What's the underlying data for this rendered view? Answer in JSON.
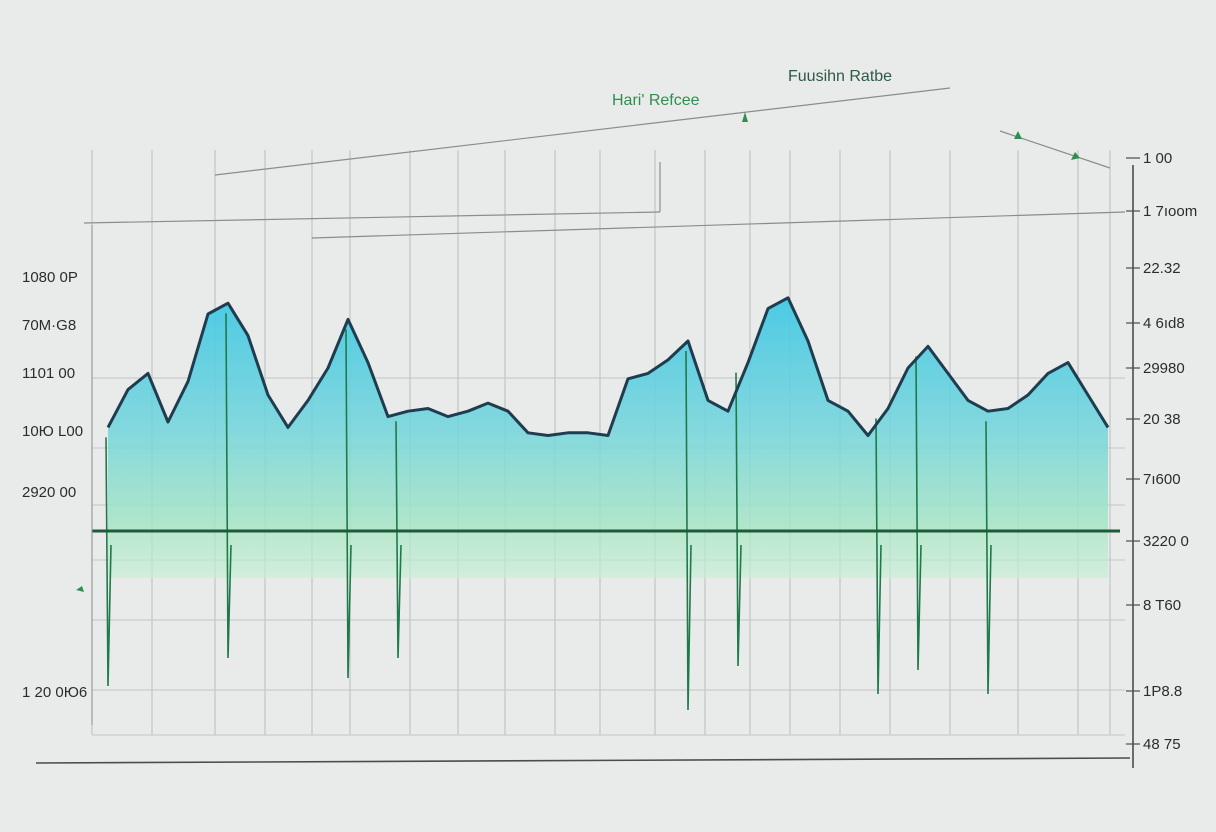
{
  "colors": {
    "background": "#e9ebea",
    "grid": "#b9bcbb",
    "axis": "#4a4d4c",
    "outline": "#1f3d4e",
    "fill_top": "#43c8e4",
    "fill_bottom": "#a8e6c4",
    "baseline": "#1f5a3c",
    "spike": "#1f7a4a",
    "annotation": "#2f8f4e"
  },
  "chart_data": {
    "type": "area",
    "title": "",
    "xlabel": "",
    "ylabel": "",
    "grid": true,
    "y_left_ticks": [
      "1080 0P",
      "70M·G8",
      "1101 00",
      "10Ю L00",
      "2920 00",
      "1 20 0Ю6"
    ],
    "y_right_ticks": [
      "1 00",
      "1 7ıoom",
      "22.32",
      "4 6ıd8",
      "29980",
      "20 38",
      "7ı600",
      "3220 0",
      "8 T60",
      "1P8.8",
      "48 75"
    ],
    "annotations": [
      "Hari' Refcee",
      "Fuusihn Ratbe"
    ],
    "x": [
      0,
      2,
      4,
      6,
      8,
      10,
      12,
      14,
      16,
      18,
      20,
      22,
      24,
      26,
      28,
      30,
      32,
      34,
      36,
      38,
      40,
      42,
      44,
      46,
      48,
      50,
      52,
      54,
      56,
      58,
      60,
      62,
      64,
      66,
      68,
      70,
      72,
      74,
      76,
      78,
      80,
      82,
      84,
      86,
      88,
      90,
      92,
      94,
      96,
      98,
      100
    ],
    "series": [
      {
        "values": [
          38,
          52,
          58,
          40,
          55,
          80,
          84,
          72,
          50,
          38,
          48,
          60,
          78,
          62,
          42,
          44,
          45,
          42,
          44,
          47,
          44,
          36,
          35,
          36,
          36,
          35,
          56,
          58,
          63,
          70,
          48,
          44,
          62,
          82,
          86,
          70,
          48,
          44,
          35,
          45,
          60,
          68,
          58,
          48,
          44,
          45,
          50,
          58,
          62,
          50,
          38
        ]
      }
    ],
    "spikes": [
      {
        "x": 0,
        "depth": 78
      },
      {
        "x": 12,
        "depth": 64
      },
      {
        "x": 24,
        "depth": 74
      },
      {
        "x": 29,
        "depth": 64
      },
      {
        "x": 58,
        "depth": 90
      },
      {
        "x": 63,
        "depth": 68
      },
      {
        "x": 77,
        "depth": 82
      },
      {
        "x": 81,
        "depth": 70
      },
      {
        "x": 88,
        "depth": 82
      }
    ],
    "ylim": [
      0,
      100
    ]
  }
}
